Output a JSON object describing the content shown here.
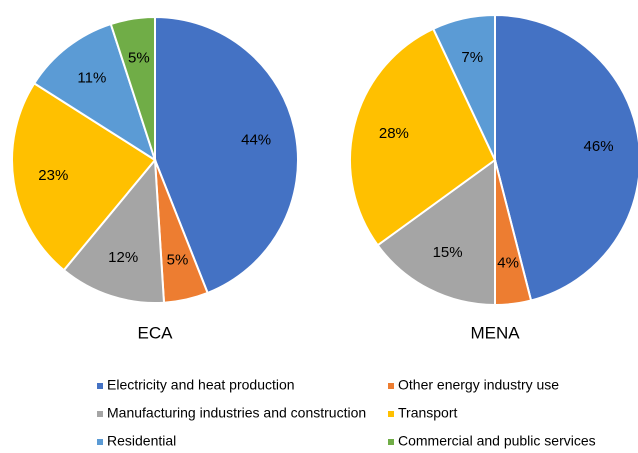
{
  "chart_data": [
    {
      "type": "pie",
      "title": "ECA",
      "categories": [
        "Electricity and heat production",
        "Other energy industry use",
        "Manufacturing industries and construction",
        "Transport",
        "Residential",
        "Commercial and public services"
      ],
      "values": [
        44,
        5,
        12,
        23,
        11,
        5
      ],
      "value_labels": [
        "44%",
        "5%",
        "12%",
        "23%",
        "11%",
        "5%"
      ],
      "colors": [
        "#4472c4",
        "#ed7d31",
        "#a5a5a5",
        "#ffc000",
        "#5b9bd5",
        "#70ad47"
      ]
    },
    {
      "type": "pie",
      "title": "MENA",
      "categories": [
        "Electricity and heat production",
        "Other energy industry use",
        "Manufacturing industries and construction",
        "Transport",
        "Residential"
      ],
      "values": [
        46,
        4,
        15,
        28,
        7
      ],
      "value_labels": [
        "46%",
        "4%",
        "15%",
        "28%",
        "7%"
      ],
      "colors": [
        "#4472c4",
        "#ed7d31",
        "#a5a5a5",
        "#ffc000",
        "#5b9bd5"
      ]
    }
  ]
}
